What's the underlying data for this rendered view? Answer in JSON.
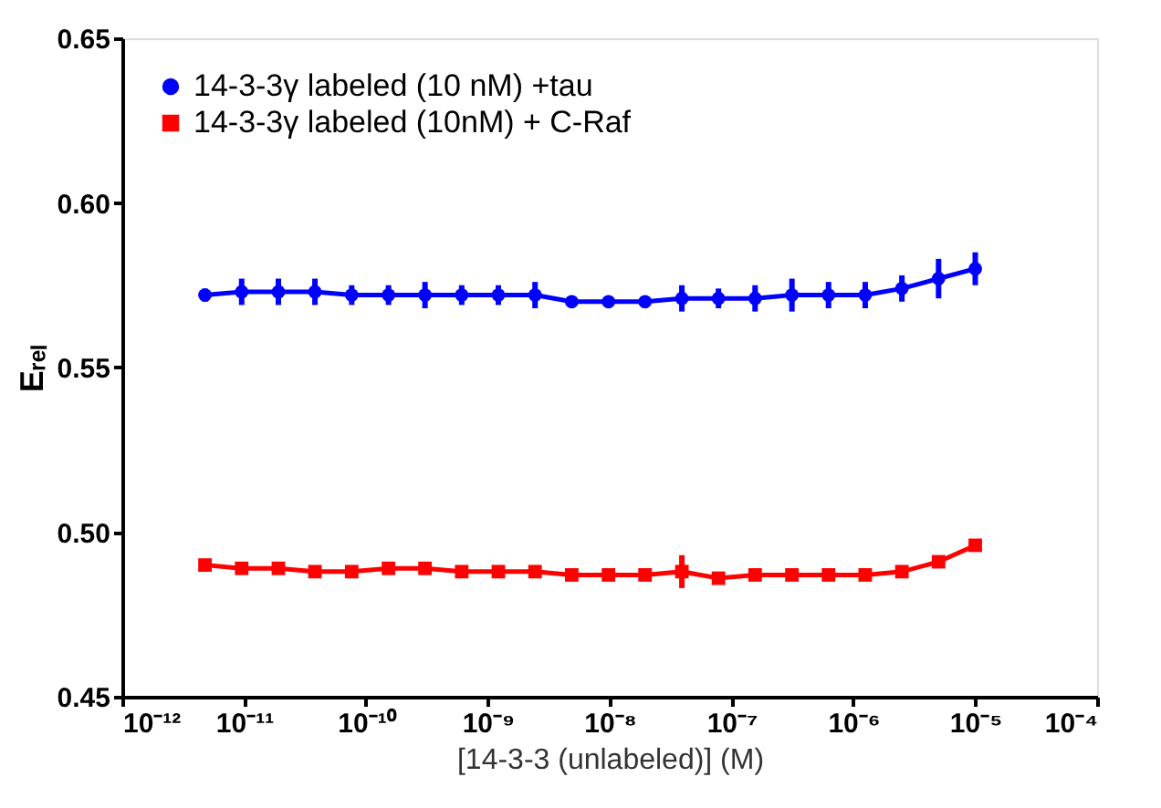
{
  "chart_data": {
    "type": "line",
    "xlabel": "[14-3-3 (unlabeled)] (M)",
    "ylabel": "Eᵣₑₗ",
    "x": [
      4.77e-12,
      9.54e-12,
      1.91e-11,
      3.81e-11,
      7.63e-11,
      1.53e-10,
      3.05e-10,
      6.1e-10,
      1.22e-09,
      2.44e-09,
      4.88e-09,
      9.77e-09,
      1.95e-08,
      3.91e-08,
      7.81e-08,
      1.56e-07,
      3.13e-07,
      6.25e-07,
      1.25e-06,
      2.5e-06,
      5e-06,
      1e-05
    ],
    "series": [
      {
        "name": "14-3-3γ labeled (10 nM) +tau",
        "color": "#0000ff",
        "marker": "circle",
        "values": [
          0.572,
          0.573,
          0.573,
          0.573,
          0.572,
          0.572,
          0.572,
          0.572,
          0.572,
          0.572,
          0.57,
          0.57,
          0.57,
          0.571,
          0.571,
          0.571,
          0.572,
          0.572,
          0.572,
          0.574,
          0.577,
          0.58
        ],
        "errors": [
          0.002,
          0.004,
          0.004,
          0.004,
          0.003,
          0.003,
          0.004,
          0.003,
          0.003,
          0.004,
          null,
          null,
          null,
          0.004,
          0.003,
          0.004,
          0.005,
          0.004,
          0.004,
          0.004,
          0.006,
          0.005
        ]
      },
      {
        "name": "14-3-3γ labeled (10nM) + C-Raf",
        "color": "#ff0000",
        "marker": "square",
        "values": [
          0.49,
          0.489,
          0.489,
          0.488,
          0.488,
          0.489,
          0.489,
          0.488,
          0.488,
          0.488,
          0.487,
          0.487,
          0.487,
          0.488,
          0.486,
          0.487,
          0.487,
          0.487,
          0.487,
          0.488,
          0.491,
          0.496
        ],
        "errors": [
          null,
          null,
          null,
          null,
          null,
          null,
          null,
          null,
          null,
          null,
          null,
          null,
          null,
          0.005,
          null,
          null,
          null,
          null,
          null,
          null,
          null,
          null
        ]
      }
    ],
    "log": "x",
    "xlim": [
      1e-12,
      0.0001
    ],
    "xticks": [
      {
        "value": 1e-12,
        "label": "10⁻¹²"
      },
      {
        "value": 1e-11,
        "label": "10⁻¹¹"
      },
      {
        "value": 1e-10,
        "label": "10⁻¹⁰"
      },
      {
        "value": 1e-09,
        "label": "10⁻⁹"
      },
      {
        "value": 1e-08,
        "label": "10⁻⁸"
      },
      {
        "value": 1e-07,
        "label": "10⁻⁷"
      },
      {
        "value": 1e-06,
        "label": "10⁻⁶"
      },
      {
        "value": 1e-05,
        "label": "10⁻⁵"
      },
      {
        "value": 0.0001,
        "label": "10⁻⁴"
      }
    ],
    "ylim": [
      0.45,
      0.65
    ],
    "yticks": [
      {
        "value": 0.45,
        "label": "0.45"
      },
      {
        "value": 0.5,
        "label": "0.50"
      },
      {
        "value": 0.55,
        "label": "0.55"
      },
      {
        "value": 0.6,
        "label": "0.60"
      },
      {
        "value": 0.65,
        "label": "0.65"
      }
    ],
    "grid": false,
    "legend": "top left",
    "line_style": "solid"
  }
}
